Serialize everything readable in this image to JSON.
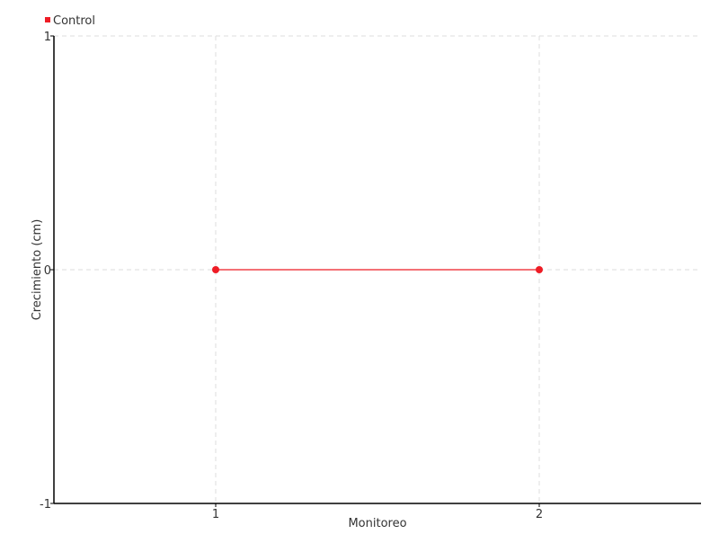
{
  "chart_data": {
    "type": "line",
    "title": "",
    "xlabel": "Monitoreo",
    "ylabel": "Crecimiento (cm)",
    "xlim": [
      0.5,
      2.5
    ],
    "ylim": [
      -1,
      1
    ],
    "x_ticks": [
      1,
      2
    ],
    "y_ticks": [
      -1,
      0,
      1
    ],
    "grid": true,
    "legend_placement": "top-left",
    "series": [
      {
        "name": "Control",
        "color": "#ee1c25",
        "x": [
          1,
          2
        ],
        "y": [
          0,
          0
        ]
      }
    ]
  }
}
